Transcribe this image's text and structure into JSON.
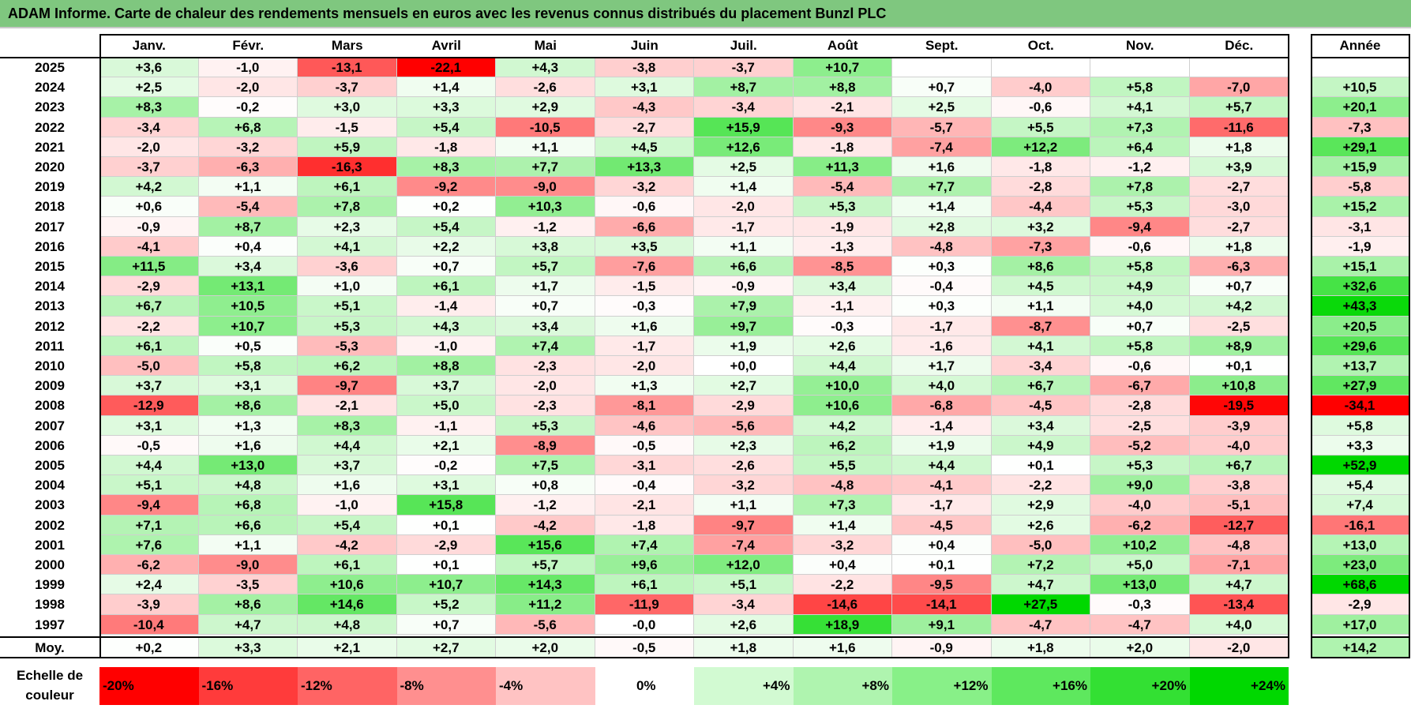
{
  "title": "ADAM Informe. Carte de chaleur des rendements mensuels en euros avec les revenus connus distribués du placement Bunzl PLC",
  "chart_data": {
    "type": "heatmap",
    "title": "ADAM Informe. Carte de chaleur des rendements mensuels en euros avec les revenus connus distribués du placement Bunzl PLC",
    "columns": [
      "Janv.",
      "Févr.",
      "Mars",
      "Avril",
      "Mai",
      "Juin",
      "Juil.",
      "Août",
      "Sept.",
      "Oct.",
      "Nov.",
      "Déc."
    ],
    "year_column_label": "Année",
    "rows": [
      {
        "year": "2025",
        "values": [
          "+3,6",
          "-1,0",
          "-13,1",
          "-22,1",
          "+4,3",
          "-3,8",
          "-3,7",
          "+10,7",
          "",
          "",
          "",
          ""
        ],
        "annual": ""
      },
      {
        "year": "2024",
        "values": [
          "+2,5",
          "-2,0",
          "-3,7",
          "+1,4",
          "-2,6",
          "+3,1",
          "+8,7",
          "+8,8",
          "+0,7",
          "-4,0",
          "+5,8",
          "-7,0"
        ],
        "annual": "+10,5"
      },
      {
        "year": "2023",
        "values": [
          "+8,3",
          "-0,2",
          "+3,0",
          "+3,3",
          "+2,9",
          "-4,3",
          "-3,4",
          "-2,1",
          "+2,5",
          "-0,6",
          "+4,1",
          "+5,7"
        ],
        "annual": "+20,1"
      },
      {
        "year": "2022",
        "values": [
          "-3,4",
          "+6,8",
          "-1,5",
          "+5,4",
          "-10,5",
          "-2,7",
          "+15,9",
          "-9,3",
          "-5,7",
          "+5,5",
          "+7,3",
          "-11,6"
        ],
        "annual": "-7,3"
      },
      {
        "year": "2021",
        "values": [
          "-2,0",
          "-3,2",
          "+5,9",
          "-1,8",
          "+1,1",
          "+4,5",
          "+12,6",
          "-1,8",
          "-7,4",
          "+12,2",
          "+6,4",
          "+1,8"
        ],
        "annual": "+29,1"
      },
      {
        "year": "2020",
        "values": [
          "-3,7",
          "-6,3",
          "-16,3",
          "+8,3",
          "+7,7",
          "+13,3",
          "+2,5",
          "+11,3",
          "+1,6",
          "-1,8",
          "-1,2",
          "+3,9"
        ],
        "annual": "+15,9"
      },
      {
        "year": "2019",
        "values": [
          "+4,2",
          "+1,1",
          "+6,1",
          "-9,2",
          "-9,0",
          "-3,2",
          "+1,4",
          "-5,4",
          "+7,7",
          "-2,8",
          "+7,8",
          "-2,7"
        ],
        "annual": "-5,8"
      },
      {
        "year": "2018",
        "values": [
          "+0,6",
          "-5,4",
          "+7,8",
          "+0,2",
          "+10,3",
          "-0,6",
          "-2,0",
          "+5,3",
          "+1,4",
          "-4,4",
          "+5,3",
          "-3,0"
        ],
        "annual": "+15,2"
      },
      {
        "year": "2017",
        "values": [
          "-0,9",
          "+8,7",
          "+2,3",
          "+5,4",
          "-1,2",
          "-6,6",
          "-1,7",
          "-1,9",
          "+2,8",
          "+3,2",
          "-9,4",
          "-2,7"
        ],
        "annual": "-3,1"
      },
      {
        "year": "2016",
        "values": [
          "-4,1",
          "+0,4",
          "+4,1",
          "+2,2",
          "+3,8",
          "+3,5",
          "+1,1",
          "-1,3",
          "-4,8",
          "-7,3",
          "-0,6",
          "+1,8"
        ],
        "annual": "-1,9"
      },
      {
        "year": "2015",
        "values": [
          "+11,5",
          "+3,4",
          "-3,6",
          "+0,7",
          "+5,7",
          "-7,6",
          "+6,6",
          "-8,5",
          "+0,3",
          "+8,6",
          "+5,8",
          "-6,3"
        ],
        "annual": "+15,1"
      },
      {
        "year": "2014",
        "values": [
          "-2,9",
          "+13,1",
          "+1,0",
          "+6,1",
          "+1,7",
          "-1,5",
          "-0,9",
          "+3,4",
          "-0,4",
          "+4,5",
          "+4,9",
          "+0,7"
        ],
        "annual": "+32,6"
      },
      {
        "year": "2013",
        "values": [
          "+6,7",
          "+10,5",
          "+5,1",
          "-1,4",
          "+0,7",
          "-0,3",
          "+7,9",
          "-1,1",
          "+0,3",
          "+1,1",
          "+4,0",
          "+4,2"
        ],
        "annual": "+43,3"
      },
      {
        "year": "2012",
        "values": [
          "-2,2",
          "+10,7",
          "+5,3",
          "+4,3",
          "+3,4",
          "+1,6",
          "+9,7",
          "-0,3",
          "-1,7",
          "-8,7",
          "+0,7",
          "-2,5"
        ],
        "annual": "+20,5"
      },
      {
        "year": "2011",
        "values": [
          "+6,1",
          "+0,5",
          "-5,3",
          "-1,0",
          "+7,4",
          "-1,7",
          "+1,9",
          "+2,6",
          "-1,6",
          "+4,1",
          "+5,8",
          "+8,9"
        ],
        "annual": "+29,6"
      },
      {
        "year": "2010",
        "values": [
          "-5,0",
          "+5,8",
          "+6,2",
          "+8,8",
          "-2,3",
          "-2,0",
          "+0,0",
          "+4,4",
          "+1,7",
          "-3,4",
          "-0,6",
          "+0,1"
        ],
        "annual": "+13,7"
      },
      {
        "year": "2009",
        "values": [
          "+3,7",
          "+3,1",
          "-9,7",
          "+3,7",
          "-2,0",
          "+1,3",
          "+2,7",
          "+10,0",
          "+4,0",
          "+6,7",
          "-6,7",
          "+10,8"
        ],
        "annual": "+27,9"
      },
      {
        "year": "2008",
        "values": [
          "-12,9",
          "+8,6",
          "-2,1",
          "+5,0",
          "-2,3",
          "-8,1",
          "-2,9",
          "+10,6",
          "-6,8",
          "-4,5",
          "-2,8",
          "-19,5"
        ],
        "annual": "-34,1"
      },
      {
        "year": "2007",
        "values": [
          "+3,1",
          "+1,3",
          "+8,3",
          "-1,1",
          "+5,3",
          "-4,6",
          "-5,6",
          "+4,2",
          "-1,4",
          "+3,4",
          "-2,5",
          "-3,9"
        ],
        "annual": "+5,8"
      },
      {
        "year": "2006",
        "values": [
          "-0,5",
          "+1,6",
          "+4,4",
          "+2,1",
          "-8,9",
          "-0,5",
          "+2,3",
          "+6,2",
          "+1,9",
          "+4,9",
          "-5,2",
          "-4,0"
        ],
        "annual": "+3,3"
      },
      {
        "year": "2005",
        "values": [
          "+4,4",
          "+13,0",
          "+3,7",
          "-0,2",
          "+7,5",
          "-3,1",
          "-2,6",
          "+5,5",
          "+4,4",
          "+0,1",
          "+5,3",
          "+6,7"
        ],
        "annual": "+52,9"
      },
      {
        "year": "2004",
        "values": [
          "+5,1",
          "+4,8",
          "+1,6",
          "+3,1",
          "+0,8",
          "-0,4",
          "-3,2",
          "-4,8",
          "-4,1",
          "-2,2",
          "+9,0",
          "-3,8"
        ],
        "annual": "+5,4"
      },
      {
        "year": "2003",
        "values": [
          "-9,4",
          "+6,8",
          "-1,0",
          "+15,8",
          "-1,2",
          "-2,1",
          "+1,1",
          "+7,3",
          "-1,7",
          "+2,9",
          "-4,0",
          "-5,1"
        ],
        "annual": "+7,4"
      },
      {
        "year": "2002",
        "values": [
          "+7,1",
          "+6,6",
          "+5,4",
          "+0,1",
          "-4,2",
          "-1,8",
          "-9,7",
          "+1,4",
          "-4,5",
          "+2,6",
          "-6,2",
          "-12,7"
        ],
        "annual": "-16,1"
      },
      {
        "year": "2001",
        "values": [
          "+7,6",
          "+1,1",
          "-4,2",
          "-2,9",
          "+15,6",
          "+7,4",
          "-7,4",
          "-3,2",
          "+0,4",
          "-5,0",
          "+10,2",
          "-4,8"
        ],
        "annual": "+13,0"
      },
      {
        "year": "2000",
        "values": [
          "-6,2",
          "-9,0",
          "+6,1",
          "+0,1",
          "+5,7",
          "+9,6",
          "+12,0",
          "+0,4",
          "+0,1",
          "+7,2",
          "+5,0",
          "-7,1"
        ],
        "annual": "+23,0"
      },
      {
        "year": "1999",
        "values": [
          "+2,4",
          "-3,5",
          "+10,6",
          "+10,7",
          "+14,3",
          "+6,1",
          "+5,1",
          "-2,2",
          "-9,5",
          "+4,7",
          "+13,0",
          "+4,7"
        ],
        "annual": "+68,6"
      },
      {
        "year": "1998",
        "values": [
          "-3,9",
          "+8,6",
          "+14,6",
          "+5,2",
          "+11,2",
          "-11,9",
          "-3,4",
          "-14,6",
          "-14,1",
          "+27,5",
          "-0,3",
          "-13,4"
        ],
        "annual": "-2,9"
      },
      {
        "year": "1997",
        "values": [
          "-10,4",
          "+4,7",
          "+4,8",
          "+0,7",
          "-5,6",
          "-0,0",
          "+2,6",
          "+18,9",
          "+9,1",
          "-4,7",
          "-4,7",
          "+4,0"
        ],
        "annual": "+17,0"
      }
    ],
    "average": {
      "label": "Moy.",
      "values": [
        "+0,2",
        "+3,3",
        "+2,1",
        "+2,7",
        "+2,0",
        "-0,5",
        "+1,8",
        "+1,6",
        "-0,9",
        "+1,8",
        "+2,0",
        "-2,0"
      ],
      "annual": "+14,2"
    },
    "scale": {
      "label_line1": "Echelle de",
      "label_line2": "couleur",
      "items": [
        {
          "label": "-20%",
          "value": -20,
          "color": "#ff0000"
        },
        {
          "label": "-16%",
          "value": -16,
          "color": "#ff3b3b"
        },
        {
          "label": "-12%",
          "value": -12,
          "color": "#ff6464"
        },
        {
          "label": "-8%",
          "value": -8,
          "color": "#ff8f8f"
        },
        {
          "label": "-4%",
          "value": -4,
          "color": "#ffc3c3"
        },
        {
          "label": "0%",
          "value": 0,
          "color": "#ffffff"
        },
        {
          "label": "+4%",
          "value": 4,
          "color": "#d2fad2"
        },
        {
          "label": "+8%",
          "value": 8,
          "color": "#aff4af"
        },
        {
          "label": "+12%",
          "value": 12,
          "color": "#88f088"
        },
        {
          "label": "+16%",
          "value": 16,
          "color": "#5ee85e"
        },
        {
          "label": "+20%",
          "value": 20,
          "color": "#33e033"
        },
        {
          "label": "+24%",
          "value": 24,
          "color": "#00d800"
        }
      ]
    }
  }
}
